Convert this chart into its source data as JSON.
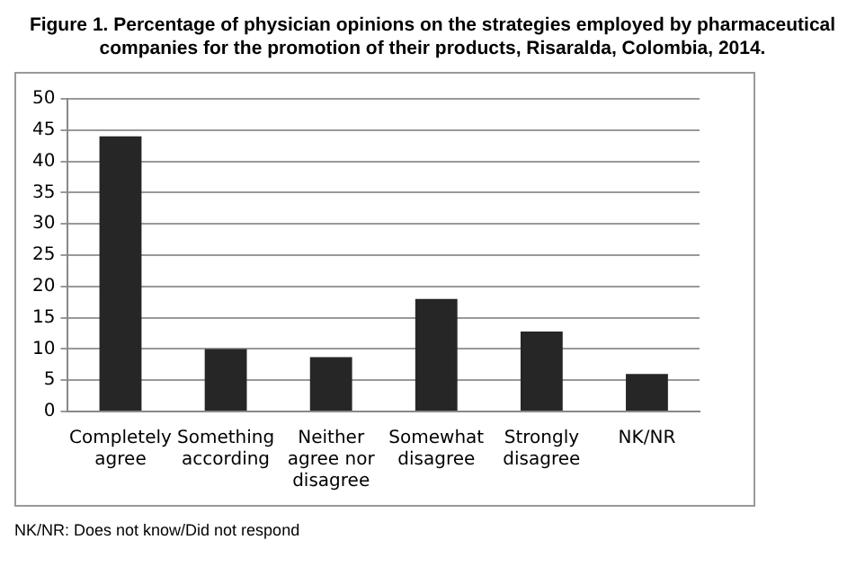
{
  "chart_data": {
    "type": "bar",
    "title": "Figure 1. Percentage of physician opinions on the strategies employed by pharmaceutical companies for the promotion of their products, Risaralda, Colombia, 2014.",
    "categories": [
      "Completely agree",
      "Something according",
      "Neither agree nor disagree",
      "Somewhat disagree",
      "Strongly disagree",
      "NK/NR"
    ],
    "values": [
      44,
      10,
      8.7,
      18,
      12.8,
      6
    ],
    "color": "#262626",
    "ylim": [
      0,
      50
    ],
    "yticks": [
      0,
      5,
      10,
      15,
      20,
      25,
      30,
      35,
      40,
      45,
      50
    ],
    "grid": "y",
    "legend": false,
    "annotations": [
      "NK/NR: Does not know/Did not respond"
    ]
  }
}
